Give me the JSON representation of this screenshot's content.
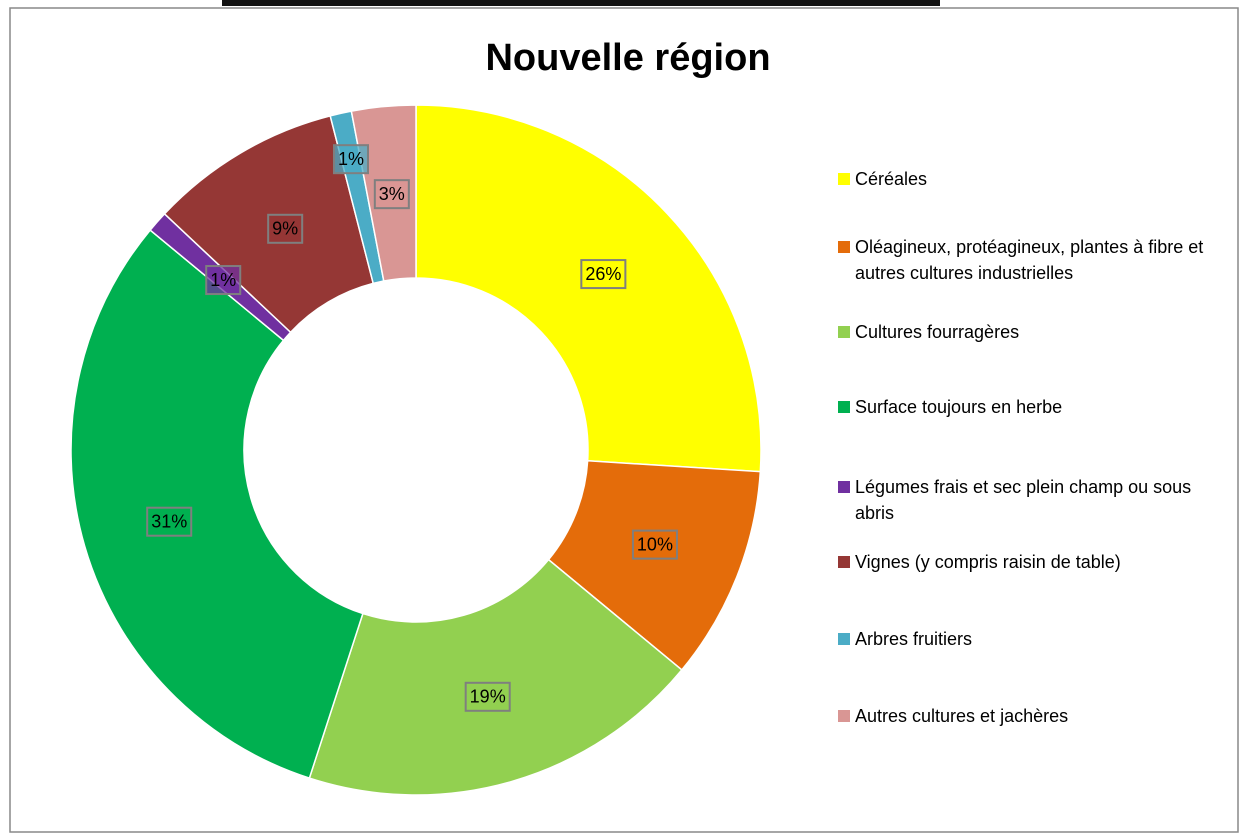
{
  "chart_data": {
    "type": "donut",
    "title": "Nouvelle région",
    "categories": [
      "Céréales",
      "Oléagineux, protéagineux, plantes à fibre et autres cultures industrielles",
      "Cultures fourragères",
      "Surface toujours en herbe",
      "Légumes frais et sec plein champ ou sous abris",
      "Vignes (y compris raisin de table)",
      "Arbres fruitiers",
      "Autres cultures et jachères"
    ],
    "values": [
      26,
      10,
      19,
      31,
      1,
      9,
      1,
      3
    ],
    "value_labels": [
      "26%",
      "10%",
      "19%",
      "31%",
      "1%",
      "9%",
      "1%",
      "3%"
    ],
    "colors": [
      "#FFFF00",
      "#E46C0A",
      "#92D050",
      "#00B050",
      "#7030A0",
      "#953735",
      "#4BACC6",
      "#D99694"
    ],
    "legend": "right"
  }
}
